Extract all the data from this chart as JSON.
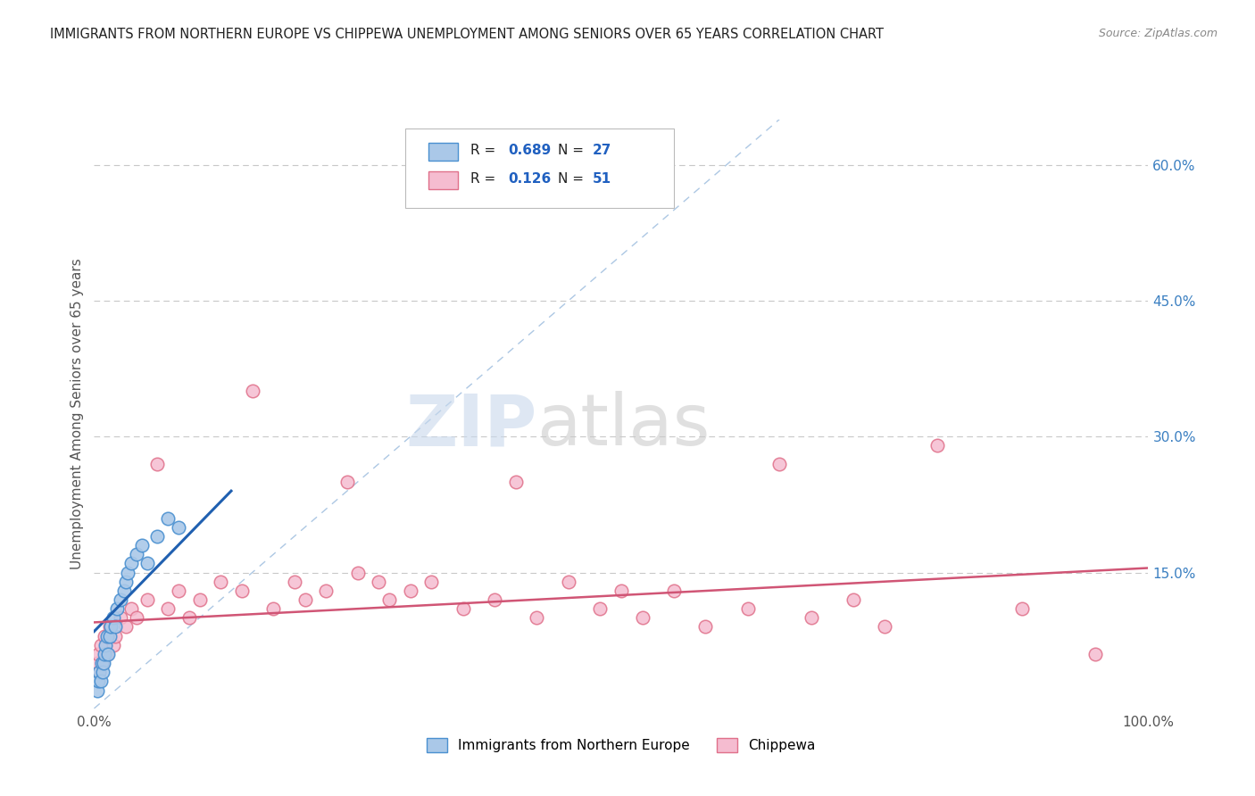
{
  "title": "IMMIGRANTS FROM NORTHERN EUROPE VS CHIPPEWA UNEMPLOYMENT AMONG SENIORS OVER 65 YEARS CORRELATION CHART",
  "source": "Source: ZipAtlas.com",
  "ylabel": "Unemployment Among Seniors over 65 years",
  "xlim": [
    0,
    100
  ],
  "ylim": [
    0,
    65
  ],
  "xtick_vals": [
    0,
    100
  ],
  "xticklabels": [
    "0.0%",
    "100.0%"
  ],
  "yticks_right": [
    15,
    30,
    45,
    60
  ],
  "ytick_labels_right": [
    "15.0%",
    "30.0%",
    "45.0%",
    "60.0%"
  ],
  "series1_name": "Immigrants from Northern Europe",
  "series1_R": "0.689",
  "series1_N": "27",
  "series1_color": "#aac8e8",
  "series1_edge_color": "#4a90d0",
  "series1_line_color": "#2060b0",
  "series2_name": "Chippewa",
  "series2_R": "0.126",
  "series2_N": "51",
  "series2_color": "#f5bcd0",
  "series2_edge_color": "#e0708a",
  "series2_line_color": "#d05575",
  "legend_R_color": "#2060c0",
  "watermark_zip": "ZIP",
  "watermark_atlas": "atlas",
  "background_color": "#ffffff",
  "grid_color": "#c8c8c8",
  "diag_color": "#8ab0d8",
  "series1_x": [
    0.3,
    0.4,
    0.5,
    0.6,
    0.7,
    0.8,
    0.9,
    1.0,
    1.1,
    1.2,
    1.3,
    1.5,
    1.6,
    1.8,
    2.0,
    2.2,
    2.5,
    2.8,
    3.0,
    3.2,
    3.5,
    4.0,
    4.5,
    5.0,
    6.0,
    7.0,
    8.0
  ],
  "series1_y": [
    2,
    3,
    4,
    3,
    5,
    4,
    5,
    6,
    7,
    8,
    6,
    8,
    9,
    10,
    9,
    11,
    12,
    13,
    14,
    15,
    16,
    17,
    18,
    16,
    19,
    21,
    20
  ],
  "series2_x": [
    0.3,
    0.4,
    0.5,
    0.6,
    0.8,
    1.0,
    1.2,
    1.5,
    1.8,
    2.0,
    2.5,
    3.0,
    3.5,
    4.0,
    5.0,
    6.0,
    7.0,
    8.0,
    9.0,
    10.0,
    12.0,
    14.0,
    15.0,
    17.0,
    19.0,
    20.0,
    22.0,
    24.0,
    25.0,
    27.0,
    28.0,
    30.0,
    32.0,
    35.0,
    38.0,
    40.0,
    42.0,
    45.0,
    48.0,
    50.0,
    52.0,
    55.0,
    58.0,
    62.0,
    65.0,
    68.0,
    72.0,
    75.0,
    80.0,
    88.0,
    95.0
  ],
  "series2_y": [
    5,
    6,
    4,
    7,
    5,
    8,
    6,
    9,
    7,
    8,
    10,
    9,
    11,
    10,
    12,
    27,
    11,
    13,
    10,
    12,
    14,
    13,
    35,
    11,
    14,
    12,
    13,
    25,
    15,
    14,
    12,
    13,
    14,
    11,
    12,
    25,
    10,
    14,
    11,
    13,
    10,
    13,
    9,
    11,
    27,
    10,
    12,
    9,
    29,
    11,
    6
  ],
  "series1_reg_x0": 0,
  "series1_reg_y0": 8.5,
  "series1_reg_x1": 13,
  "series1_reg_y1": 24,
  "series2_reg_x0": 0,
  "series2_reg_y0": 9.5,
  "series2_reg_x1": 100,
  "series2_reg_y1": 15.5,
  "diag_x0": 0,
  "diag_y0": 0,
  "diag_x1": 65,
  "diag_y1": 65
}
